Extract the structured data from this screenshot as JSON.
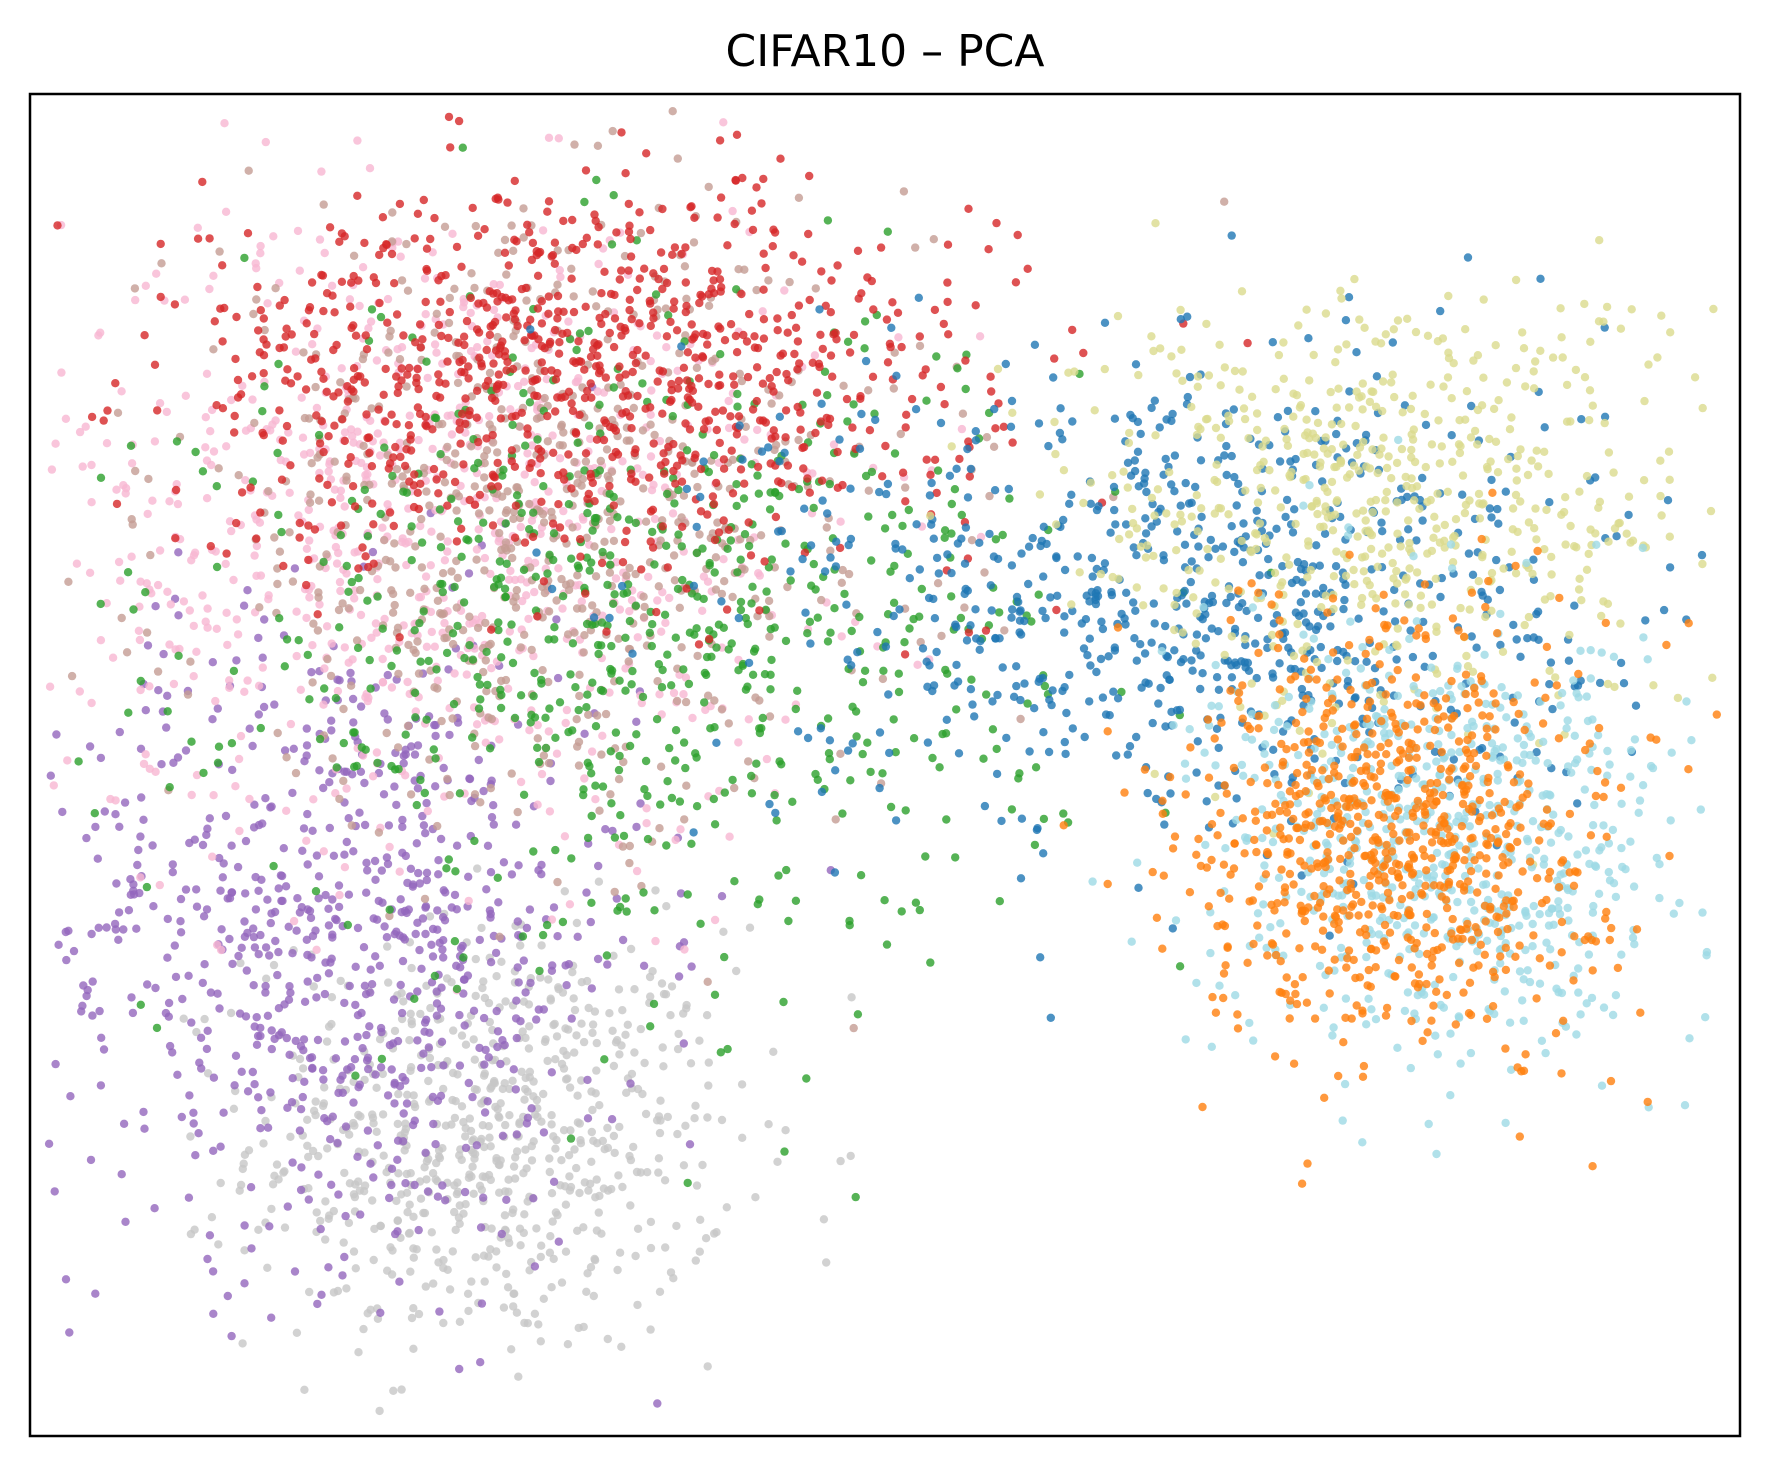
{
  "chart_data": {
    "type": "scatter",
    "title": "CIFAR10 – PCA",
    "xlabel": "",
    "ylabel": "",
    "xlim": [
      0,
      100
    ],
    "ylim": [
      0,
      100
    ],
    "ticks_visible": false,
    "grid": false,
    "legend": "none",
    "marker_alpha": 0.8,
    "series": [
      {
        "color": "#c7c7c7",
        "count": 700,
        "center": [
          27,
          22
        ],
        "spread": [
          7,
          8
        ]
      },
      {
        "color": "#9467bd",
        "count": 800,
        "center": [
          18,
          37
        ],
        "spread": [
          9,
          12
        ]
      },
      {
        "color": "#f7b6d2",
        "count": 800,
        "center": [
          24,
          68
        ],
        "spread": [
          11,
          12
        ]
      },
      {
        "color": "#c49c94",
        "count": 700,
        "center": [
          30,
          68
        ],
        "spread": [
          11,
          11
        ]
      },
      {
        "color": "#2ca02c",
        "count": 700,
        "center": [
          36,
          60
        ],
        "spread": [
          12,
          12
        ]
      },
      {
        "color": "#d62728",
        "count": 900,
        "center": [
          32,
          79
        ],
        "spread": [
          12,
          7
        ]
      },
      {
        "color": "#1f77b4",
        "count": 800,
        "center": [
          68,
          63
        ],
        "spread": [
          12,
          9
        ]
      },
      {
        "color": "#dbdb8d",
        "count": 600,
        "center": [
          79,
          70
        ],
        "spread": [
          9,
          8
        ]
      },
      {
        "color": "#9edae5",
        "count": 700,
        "center": [
          83,
          44
        ],
        "spread": [
          7,
          8
        ]
      },
      {
        "color": "#ff7f0e",
        "count": 800,
        "center": [
          80,
          45
        ],
        "spread": [
          6,
          8
        ]
      }
    ]
  }
}
